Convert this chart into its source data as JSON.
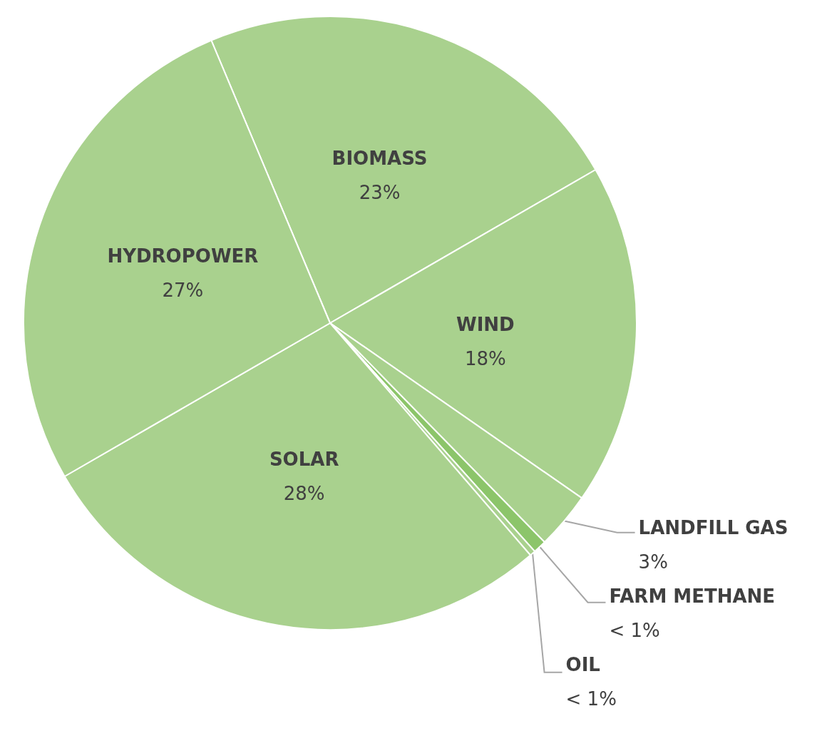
{
  "chart_data": {
    "type": "pie",
    "categories": [
      "BIOMASS",
      "WIND",
      "LANDFILL GAS",
      "FARM METHANE",
      "OIL",
      "SOLAR",
      "HYDROPOWER"
    ],
    "values": [
      23,
      18,
      3,
      0.7,
      0.3,
      28,
      27
    ],
    "value_labels": [
      "23%",
      "18%",
      "3%",
      "< 1%",
      "< 1%",
      "28%",
      "27%"
    ],
    "colors": [
      "#a9d18e",
      "#a9d18e",
      "#a9d18e",
      "#8cc56a",
      "#a9d18e",
      "#a9d18e",
      "#a9d18e"
    ],
    "legend": false
  }
}
